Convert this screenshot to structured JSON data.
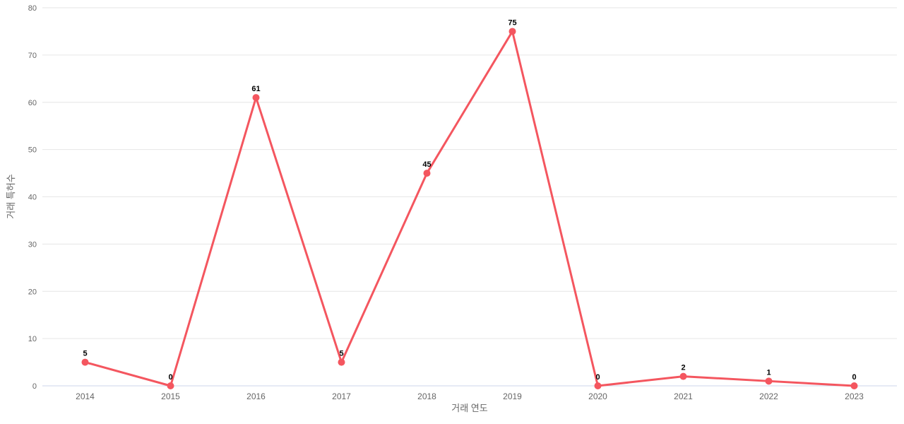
{
  "chart_data": {
    "type": "line",
    "title": "",
    "categories": [
      "2014",
      "2015",
      "2016",
      "2017",
      "2018",
      "2019",
      "2020",
      "2021",
      "2022",
      "2023"
    ],
    "series": [
      {
        "name": "거래 특허수",
        "values": [
          5,
          0,
          61,
          5,
          45,
          75,
          0,
          2,
          1,
          0
        ],
        "data_labels": [
          "5",
          "0",
          "61",
          "5",
          "45",
          "75",
          "0",
          "2",
          "1",
          "0"
        ]
      }
    ],
    "xlabel": "거래 연도",
    "ylabel": "거래 특허수",
    "ylim": [
      0,
      80
    ],
    "ytick_step": 10,
    "ytick_labels": [
      "0",
      "10",
      "20",
      "30",
      "40",
      "50",
      "60",
      "70",
      "80"
    ],
    "grid": "horizontal",
    "legend_position": "none",
    "colors": {
      "line": "#f4565f",
      "marker": "#f4565f",
      "grid_line": "#e6e6e6",
      "axis_line": "#ccd6eb",
      "tick_label": "#666666",
      "axis_title": "#666666",
      "data_label": "#000000",
      "background": "#ffffff"
    }
  }
}
